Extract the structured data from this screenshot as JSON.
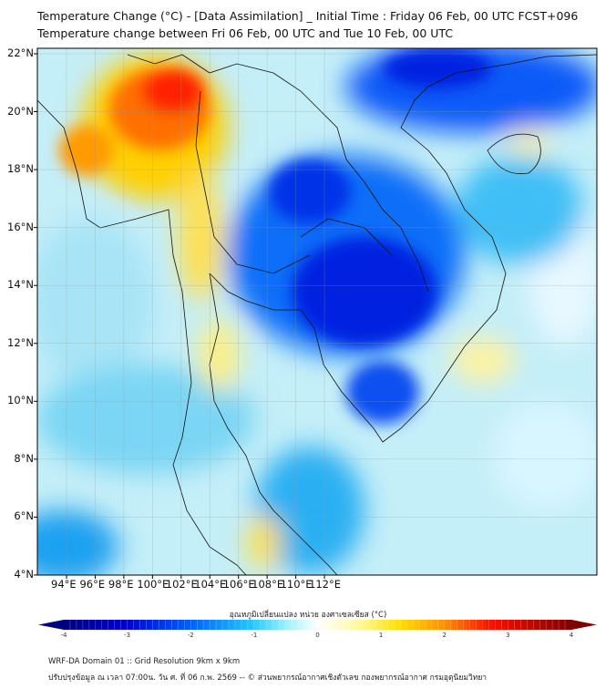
{
  "header": {
    "title_line1": "Temperature Change (°C) - [Data Assimilation] _ Initial Time : Friday 06 Feb, 00 UTC FCST+096",
    "title_line2": "Temperature change between Fri 06 Feb, 00 UTC and Tue 10 Feb, 00 UTC"
  },
  "map": {
    "lat_labels": [
      "22°N",
      "20°N",
      "18°N",
      "16°N",
      "14°N",
      "12°N",
      "10°N",
      "8°N",
      "6°N",
      "4°N"
    ],
    "lon_labels": [
      "94°E",
      "96°E",
      "98°E",
      "100°E",
      "102°E",
      "104°E",
      "106°E",
      "108°E",
      "110°E",
      "112°E"
    ]
  },
  "colorbar": {
    "label": "อุณหภูมิเปลี่ยนแปลง หน่วย องศาเซลเซียส (°C)",
    "ticks": [
      "-4",
      "-3",
      "-2",
      "-1",
      "0",
      "1",
      "2",
      "3",
      "4"
    ],
    "min": -4,
    "max": 4,
    "colors": [
      "#00007f",
      "#0000d0",
      "#0050ff",
      "#00b0ff",
      "#40e8ff",
      "#c8f8ff",
      "#ffffff",
      "#fffcc0",
      "#ffff40",
      "#ffc000",
      "#ff6000",
      "#ff0000",
      "#c00000",
      "#7f0000"
    ]
  },
  "footer": {
    "line1": "WRF-DA Domain 01 :: Grid Resolution 9km x 9km",
    "line2": "ปรับปรุงข้อมูล ณ เวลา 07:00น. วัน ศ. ที่ 06 ก.พ. 2569 -- © ส่วนพยากรณ์อากาศเชิงตัวเลข กองพยากรณ์อากาศ กรมอุตุนิยมวิทยา"
  }
}
